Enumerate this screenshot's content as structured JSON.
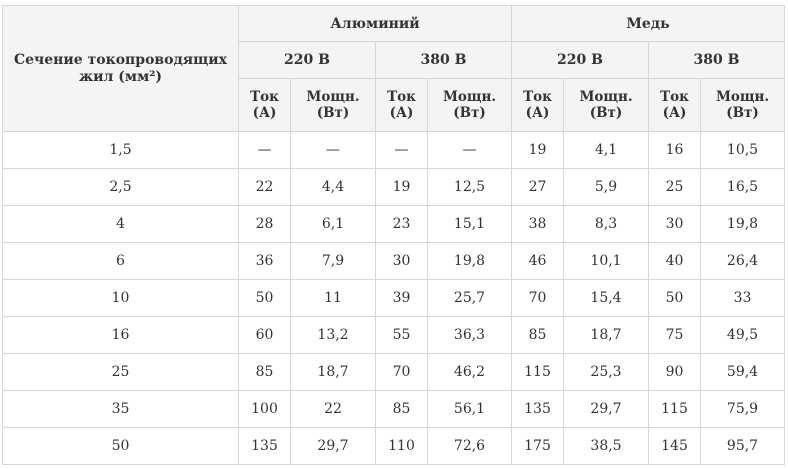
{
  "header": {
    "section_label": "Сечение токопроводящих жил (мм²)",
    "groups": [
      {
        "label": "Алюминий",
        "voltages": [
          "220 В",
          "380 В"
        ]
      },
      {
        "label": "Медь",
        "voltages": [
          "220 В",
          "380 В"
        ]
      }
    ],
    "sub": {
      "current": [
        "Ток",
        "(А)"
      ],
      "power": [
        "Мощн.",
        "(Вт)"
      ]
    }
  },
  "rows": [
    {
      "section": "1,5",
      "values": [
        "—",
        "—",
        "—",
        "—",
        "19",
        "4,1",
        "16",
        "10,5"
      ]
    },
    {
      "section": "2,5",
      "values": [
        "22",
        "4,4",
        "19",
        "12,5",
        "27",
        "5,9",
        "25",
        "16,5"
      ]
    },
    {
      "section": "4",
      "values": [
        "28",
        "6,1",
        "23",
        "15,1",
        "38",
        "8,3",
        "30",
        "19,8"
      ]
    },
    {
      "section": "6",
      "values": [
        "36",
        "7,9",
        "30",
        "19,8",
        "46",
        "10,1",
        "40",
        "26,4"
      ]
    },
    {
      "section": "10",
      "values": [
        "50",
        "11",
        "39",
        "25,7",
        "70",
        "15,4",
        "50",
        "33"
      ]
    },
    {
      "section": "16",
      "values": [
        "60",
        "13,2",
        "55",
        "36,3",
        "85",
        "18,7",
        "75",
        "49,5"
      ]
    },
    {
      "section": "25",
      "values": [
        "85",
        "18,7",
        "70",
        "46,2",
        "115",
        "25,3",
        "90",
        "59,4"
      ]
    },
    {
      "section": "35",
      "values": [
        "100",
        "22",
        "85",
        "56,1",
        "135",
        "29,7",
        "115",
        "75,9"
      ]
    },
    {
      "section": "50",
      "values": [
        "135",
        "29,7",
        "110",
        "72,6",
        "175",
        "38,5",
        "145",
        "95,7"
      ]
    }
  ]
}
